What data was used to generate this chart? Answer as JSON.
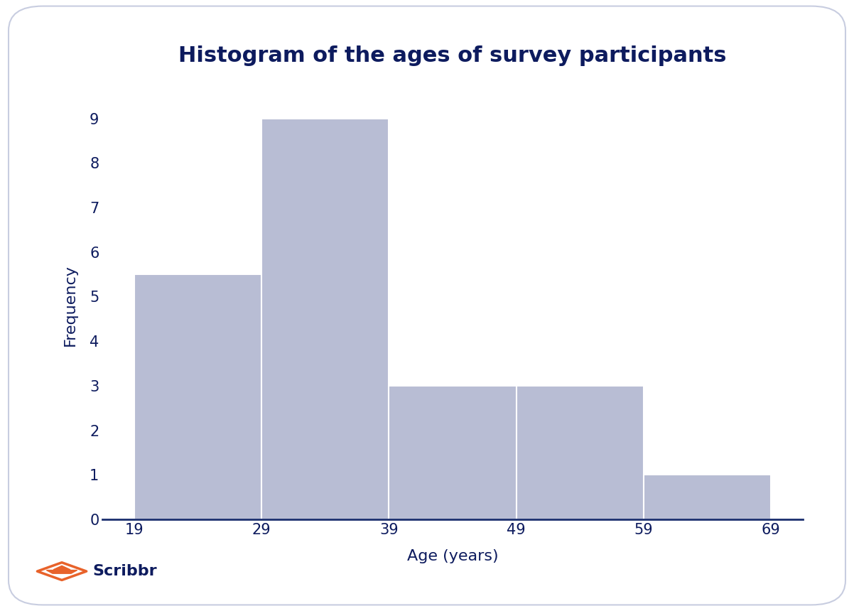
{
  "title": "Histogram of the ages of survey participants",
  "xlabel": "Age (years)",
  "ylabel": "Frequency",
  "bin_edges": [
    19,
    29,
    39,
    49,
    59,
    69
  ],
  "frequencies": [
    5.5,
    9,
    3,
    3,
    1
  ],
  "bar_color": "#b8bdd4",
  "bar_edgecolor": "#ffffff",
  "axis_color": "#1a2e6e",
  "title_color": "#0d1b5e",
  "label_color": "#0d1b5e",
  "tick_color": "#0d1b5e",
  "background_color": "#ffffff",
  "border_color": "#c8cde0",
  "ylim": [
    0,
    9.6
  ],
  "yticks": [
    0,
    1,
    2,
    3,
    4,
    5,
    6,
    7,
    8,
    9
  ],
  "xticks": [
    19,
    29,
    39,
    49,
    59,
    69
  ],
  "title_fontsize": 22,
  "label_fontsize": 16,
  "tick_fontsize": 15,
  "title_fontweight": "bold",
  "logo_text": "Scribbr",
  "logo_color": "#0d1b5e",
  "logo_icon_color": "#e8622a"
}
